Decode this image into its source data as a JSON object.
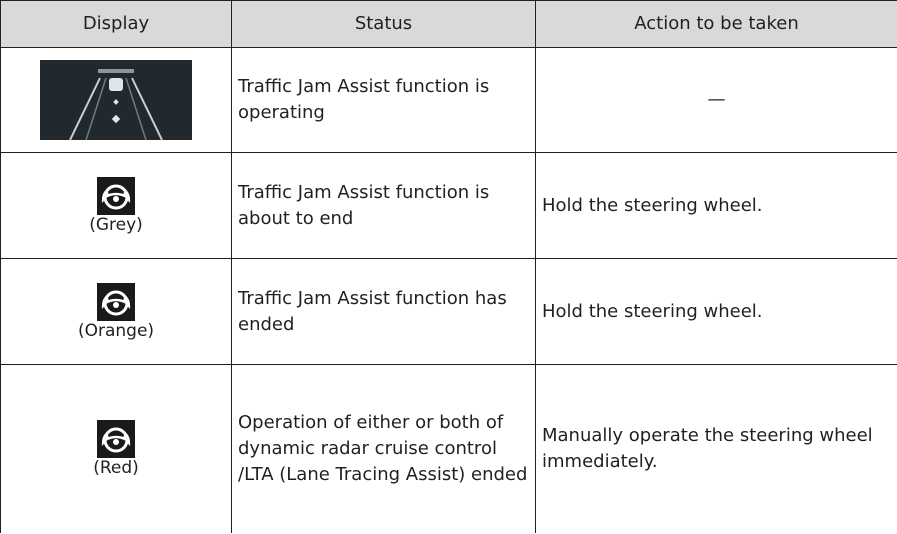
{
  "table": {
    "header": [
      "Display",
      "Status",
      "Action to be taken"
    ],
    "rows": [
      {
        "status": "Traffic Jam Assist function is operating",
        "action": "—"
      },
      {
        "caption": "(Grey)",
        "status": "Traffic Jam Assist function is about to end",
        "action": "Hold the steering wheel."
      },
      {
        "caption": "(Orange)",
        "status": "Traffic Jam Assist function has ended",
        "action": "Hold the steering wheel."
      },
      {
        "caption": "(Red)",
        "status": "Operation of either or both of dynamic radar cruise control /LTA (Lane Tracing Assist) ended",
        "action": "Manually operate the steering wheel immediately."
      }
    ]
  }
}
